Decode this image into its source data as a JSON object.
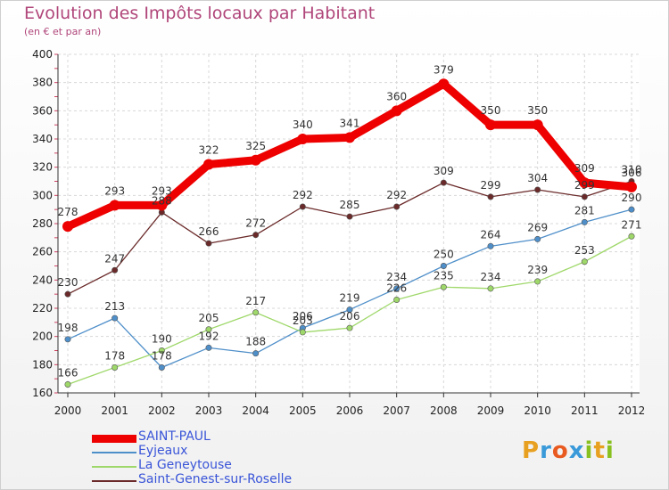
{
  "title": "Evolution des Impôts locaux par Habitant",
  "subtitle": "(en € et par an)",
  "logo": {
    "letters": [
      "P",
      "r",
      "o",
      "x",
      "i",
      "t",
      "i"
    ],
    "colors": [
      "#e8a020",
      "#3a9ad9",
      "#e85a20",
      "#3a9ad9",
      "#88c020",
      "#e8a020",
      "#88c020"
    ]
  },
  "chart_data": {
    "type": "line",
    "x": [
      "2000",
      "2001",
      "2002",
      "2003",
      "2004",
      "2005",
      "2006",
      "2007",
      "2008",
      "2009",
      "2010",
      "2011",
      "2012"
    ],
    "ylim": [
      160,
      400
    ],
    "yticks": [
      160,
      180,
      200,
      220,
      240,
      260,
      280,
      300,
      320,
      340,
      360,
      380,
      400
    ],
    "grid": true,
    "legend_position": "bottom-left",
    "series": [
      {
        "name": "Saint-Genest-sur-Roselle",
        "color": "#6b2a2a",
        "width": 1.3,
        "values": [
          230,
          247,
          288,
          266,
          272,
          292,
          285,
          292,
          309,
          299,
          304,
          299,
          310
        ],
        "labels": [
          "230",
          "247",
          "288",
          "266",
          "272",
          "292",
          "285",
          "292",
          "309",
          "299",
          "304",
          "299",
          "310"
        ]
      },
      {
        "name": "Eyjeaux",
        "color": "#4f8fc9",
        "width": 1.3,
        "values": [
          198,
          213,
          178,
          192,
          188,
          206,
          219,
          234,
          250,
          264,
          269,
          281,
          290
        ],
        "labels": [
          "198",
          "213",
          "178",
          "192",
          "188",
          "206",
          "219",
          "234",
          "250",
          "264",
          "269",
          "281",
          "290"
        ]
      },
      {
        "name": "La Geneytouse",
        "color": "#9fd86a",
        "width": 1.3,
        "values": [
          166,
          178,
          190,
          205,
          217,
          203,
          206,
          226,
          235,
          234,
          239,
          253,
          271
        ],
        "labels": [
          "166",
          "178",
          "190",
          "205",
          "217",
          "203",
          "206",
          "226",
          "235",
          "234",
          "239",
          "253",
          "271"
        ]
      },
      {
        "name": "SAINT-PAUL",
        "color": "#ee0000",
        "width": 9,
        "values": [
          278,
          293,
          293,
          322,
          325,
          340,
          341,
          360,
          379,
          350,
          350,
          309,
          306
        ],
        "labels": [
          "278",
          "293",
          "293",
          "322",
          "325",
          "340",
          "341",
          "360",
          "379",
          "350",
          "350",
          "309",
          "306"
        ]
      }
    ],
    "legend": [
      {
        "name": "SAINT-PAUL",
        "color": "#ee0000",
        "width": 9
      },
      {
        "name": "Eyjeaux",
        "color": "#4f8fc9",
        "width": 2
      },
      {
        "name": "La Geneytouse",
        "color": "#9fd86a",
        "width": 2
      },
      {
        "name": "Saint-Genest-sur-Roselle",
        "color": "#6b2a2a",
        "width": 2
      }
    ]
  }
}
